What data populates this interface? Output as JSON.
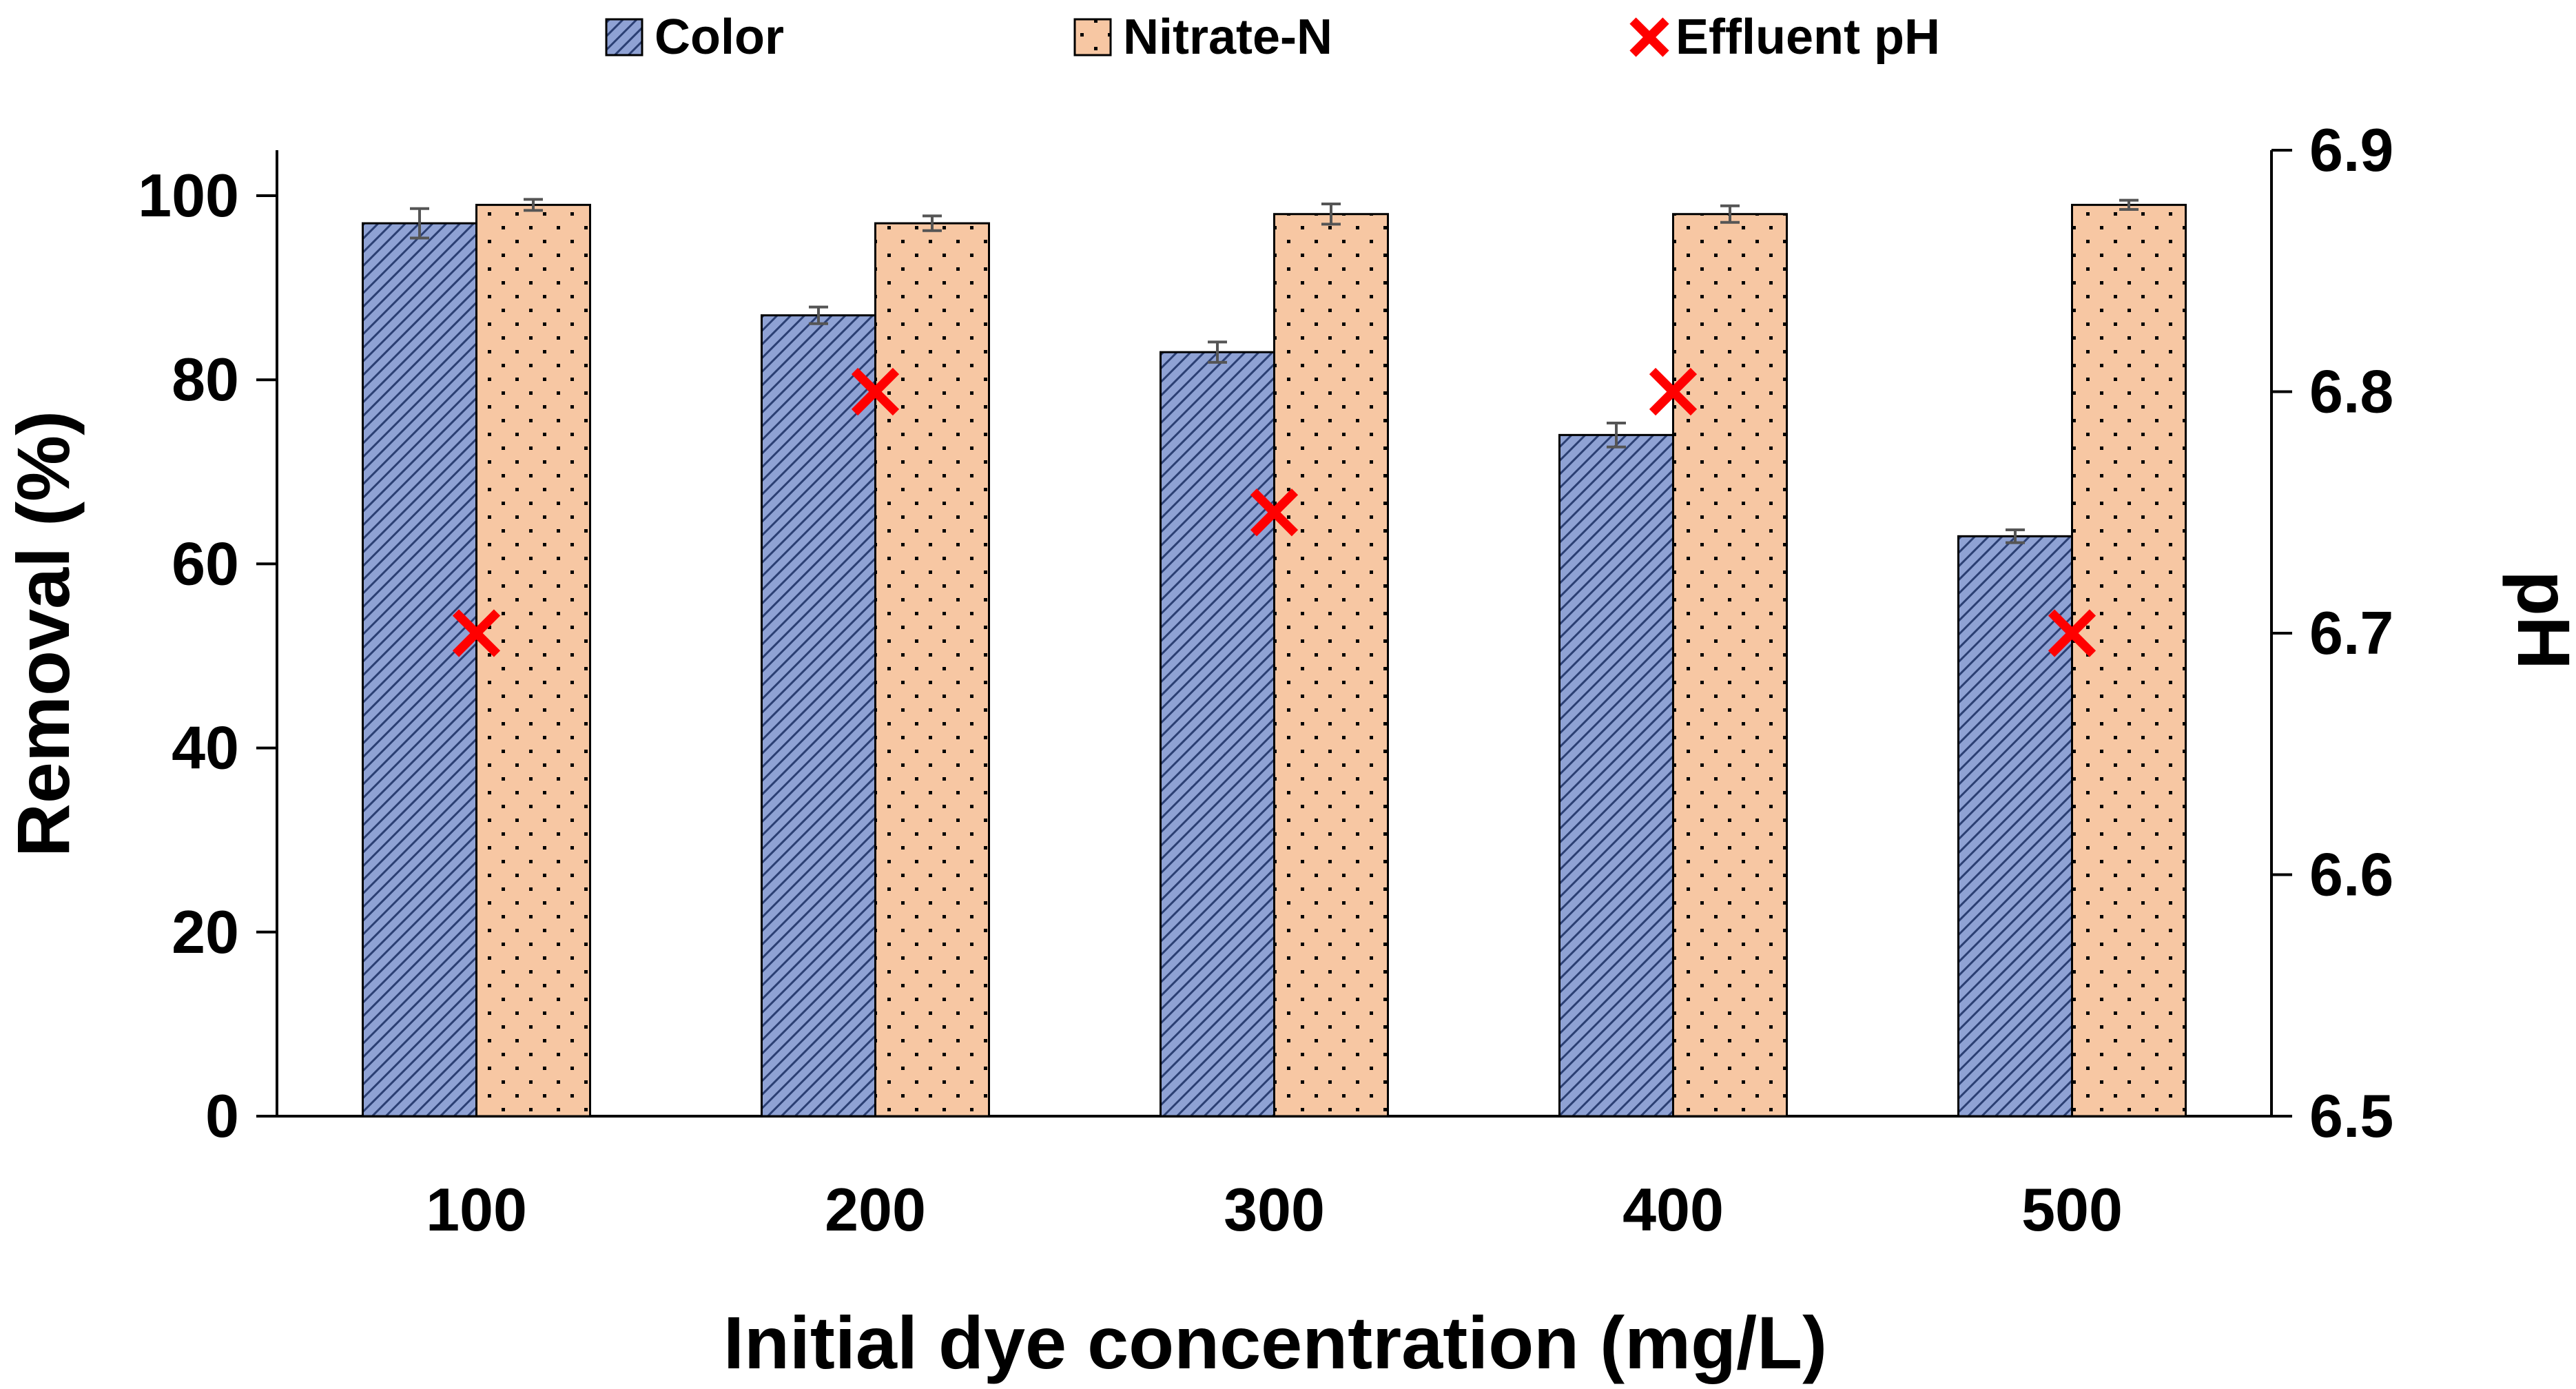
{
  "chart_data": {
    "type": "bar",
    "title": "",
    "xlabel": "Initial dye concentration (mg/L)",
    "ylabel": "Removal (%)",
    "y2label": "pH",
    "categories": [
      "100",
      "200",
      "300",
      "400",
      "500"
    ],
    "ylim": [
      0,
      100
    ],
    "yticks": [
      "0",
      "20",
      "40",
      "60",
      "80",
      "100"
    ],
    "y2lim": [
      6.5,
      6.9
    ],
    "y2ticks": [
      "6.5",
      "6.6",
      "6.7",
      "6.8",
      "6.9"
    ],
    "grid": false,
    "legend_position": "top",
    "series": [
      {
        "name": "Color",
        "kind": "bar",
        "axis": "left",
        "color": "#8fa2d4",
        "pattern": "diagonal-hatch",
        "values": [
          97,
          87,
          83,
          74,
          63
        ],
        "errors": [
          1.6,
          0.9,
          1.1,
          1.3,
          0.7
        ]
      },
      {
        "name": "Nitrate-N",
        "kind": "bar",
        "axis": "left",
        "color": "#f7c7a3",
        "pattern": "dots",
        "values": [
          99,
          97,
          98,
          98,
          99
        ],
        "errors": [
          0.6,
          0.8,
          1.1,
          0.9,
          0.5
        ]
      },
      {
        "name": "Effluent pH",
        "kind": "marker",
        "axis": "right",
        "color": "#ff0000",
        "marker": "x",
        "values": [
          6.7,
          6.8,
          6.75,
          6.8,
          6.7
        ]
      }
    ]
  }
}
